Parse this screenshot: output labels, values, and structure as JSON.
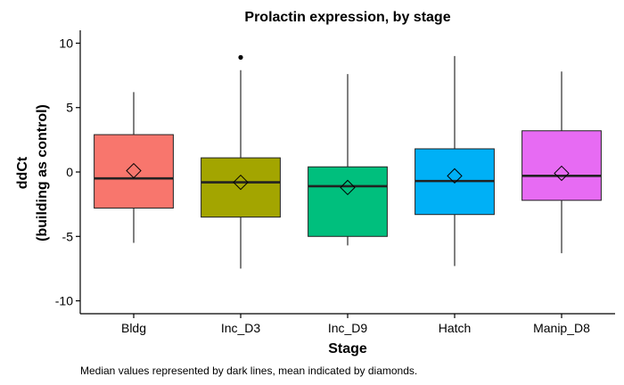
{
  "chart_data": {
    "type": "box",
    "title": "Prolactin expression, by stage",
    "xlabel": "Stage",
    "ylabel_lines": [
      "ddCt",
      "(building as control)"
    ],
    "caption": "Median values represented by dark lines, mean indicated by diamonds.",
    "ylim": [
      -11,
      11
    ],
    "yticks": [
      -10,
      -5,
      0,
      5,
      10
    ],
    "yticks_labels": [
      "-10",
      "-5",
      "0",
      "5",
      "10"
    ],
    "grid": false,
    "categories": [
      "Bldg",
      "Inc_D3",
      "Inc_D9",
      "Hatch",
      "Manip_D8"
    ],
    "boxes": [
      {
        "category": "Bldg",
        "whisker_low": -5.5,
        "q1": -2.8,
        "median": -0.5,
        "q3": 2.9,
        "whisker_high": 6.2,
        "mean": 0.1,
        "outliers": [],
        "color": "#F8766D"
      },
      {
        "category": "Inc_D3",
        "whisker_low": -7.5,
        "q1": -3.5,
        "median": -0.8,
        "q3": 1.1,
        "whisker_high": 7.9,
        "mean": -0.8,
        "outliers": [
          8.9
        ],
        "color": "#A3A500"
      },
      {
        "category": "Inc_D9",
        "whisker_low": -5.7,
        "q1": -5.0,
        "median": -1.1,
        "q3": 0.4,
        "whisker_high": 7.6,
        "mean": -1.2,
        "outliers": [],
        "color": "#00BF7D"
      },
      {
        "category": "Hatch",
        "whisker_low": -7.3,
        "q1": -3.3,
        "median": -0.7,
        "q3": 1.8,
        "whisker_high": 9.0,
        "mean": -0.3,
        "outliers": [],
        "color": "#00B0F6"
      },
      {
        "category": "Manip_D8",
        "whisker_low": -6.3,
        "q1": -2.2,
        "median": -0.3,
        "q3": 3.2,
        "whisker_high": 7.8,
        "mean": -0.1,
        "outliers": [],
        "color": "#E76BF3"
      }
    ]
  }
}
